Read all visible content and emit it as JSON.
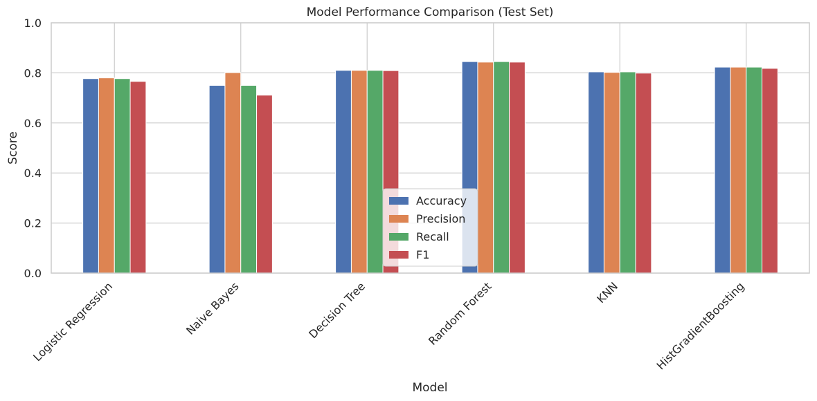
{
  "chart_data": {
    "type": "bar",
    "title": "Model Performance Comparison (Test Set)",
    "xlabel": "Model",
    "ylabel": "Score",
    "ylim": [
      0,
      1.0
    ],
    "yticks": [
      0.0,
      0.2,
      0.4,
      0.6,
      0.8,
      1.0
    ],
    "ytick_labels": [
      "0.0",
      "0.2",
      "0.4",
      "0.6",
      "0.8",
      "1.0"
    ],
    "grid": true,
    "legend_position": "lower center",
    "categories": [
      "Logistic Regression",
      "Naive Bayes",
      "Decision Tree",
      "Random Forest",
      "KNN",
      "HistGradientBoosting"
    ],
    "series": [
      {
        "name": "Accuracy",
        "color": "#4c72b0",
        "values": [
          0.777,
          0.75,
          0.81,
          0.845,
          0.804,
          0.823
        ]
      },
      {
        "name": "Precision",
        "color": "#dd8452",
        "values": [
          0.78,
          0.801,
          0.81,
          0.843,
          0.802,
          0.823
        ]
      },
      {
        "name": "Recall",
        "color": "#55a868",
        "values": [
          0.777,
          0.75,
          0.81,
          0.845,
          0.804,
          0.823
        ]
      },
      {
        "name": "F1",
        "color": "#c44e52",
        "values": [
          0.766,
          0.711,
          0.809,
          0.843,
          0.799,
          0.818
        ]
      }
    ]
  }
}
